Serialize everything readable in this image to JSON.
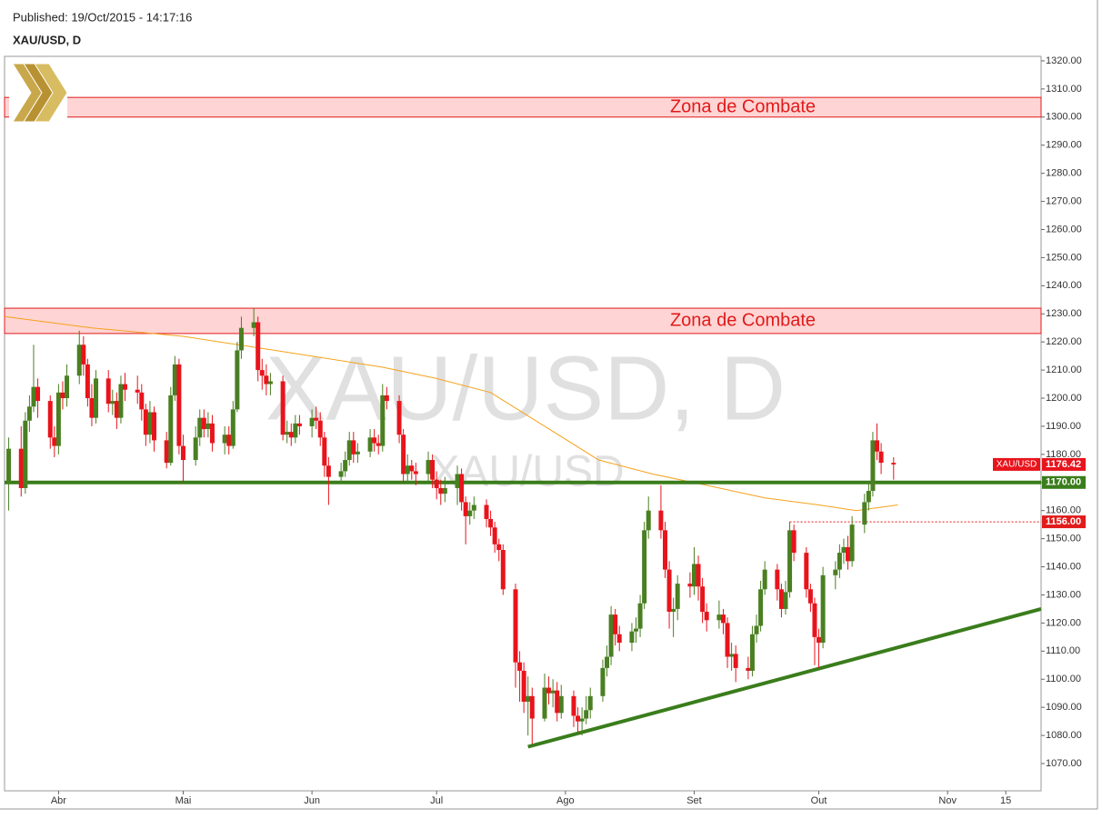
{
  "header": {
    "published": "Published: 19/Oct/2015 - 14:17:16",
    "symbol": "XAU/USD, D"
  },
  "chart_data": {
    "type": "candlestick",
    "watermark": "XAU/USD, D",
    "watermark_sub": "XAU/USD",
    "symbol_tag": "XAU/USD",
    "up_color": "#4a7f22",
    "down_color": "#e8141c",
    "xlim": [
      78,
      327.5
    ],
    "ylim": [
      1060.3,
      1321.6
    ],
    "xticks": [
      {
        "value": 91,
        "label": "Abr"
      },
      {
        "value": 121,
        "label": "Mai"
      },
      {
        "value": 152,
        "label": "Jun"
      },
      {
        "value": 182,
        "label": "Jul"
      },
      {
        "value": 213,
        "label": "Ago"
      },
      {
        "value": 244,
        "label": "Set"
      },
      {
        "value": 274,
        "label": "Out"
      },
      {
        "value": 305,
        "label": "Nov"
      },
      {
        "value": 319,
        "label": "15"
      }
    ],
    "yticks": [
      {
        "value": 1070,
        "label": "1070.00"
      },
      {
        "value": 1080,
        "label": "1080.00"
      },
      {
        "value": 1090,
        "label": "1090.00"
      },
      {
        "value": 1100,
        "label": "1100.00"
      },
      {
        "value": 1110,
        "label": "1110.00"
      },
      {
        "value": 1120,
        "label": "1120.00"
      },
      {
        "value": 1130,
        "label": "1130.00"
      },
      {
        "value": 1140,
        "label": "1140.00"
      },
      {
        "value": 1150,
        "label": "1150.00"
      },
      {
        "value": 1160,
        "label": "1160.00"
      },
      {
        "value": 1170,
        "label": "1170.00"
      },
      {
        "value": 1180,
        "label": "1180.00"
      },
      {
        "value": 1190,
        "label": "1190.00"
      },
      {
        "value": 1200,
        "label": "1200.00"
      },
      {
        "value": 1210,
        "label": "1210.00"
      },
      {
        "value": 1220,
        "label": "1220.00"
      },
      {
        "value": 1230,
        "label": "1230.00"
      },
      {
        "value": 1240,
        "label": "1240.00"
      },
      {
        "value": 1250,
        "label": "1250.00"
      },
      {
        "value": 1260,
        "label": "1260.00"
      },
      {
        "value": 1270,
        "label": "1270.00"
      },
      {
        "value": 1280,
        "label": "1280.00"
      },
      {
        "value": 1290,
        "label": "1290.00"
      },
      {
        "value": 1300,
        "label": "1300.00"
      },
      {
        "value": 1310,
        "label": "1310.00"
      },
      {
        "value": 1320,
        "label": "1320.00"
      }
    ],
    "x": [
      79,
      82,
      83,
      84,
      85,
      86,
      89,
      90,
      91,
      92,
      93,
      96,
      97,
      98,
      99,
      100,
      103,
      104,
      105,
      106,
      107,
      110,
      111,
      112,
      113,
      114,
      117,
      118,
      119,
      120,
      121,
      124,
      125,
      126,
      127,
      128,
      131,
      132,
      133,
      134,
      135,
      138,
      139,
      140,
      141,
      142,
      145,
      146,
      147,
      148,
      149,
      152,
      153,
      154,
      155,
      156,
      159,
      160,
      161,
      162,
      163,
      166,
      167,
      168,
      169,
      170,
      173,
      174,
      175,
      176,
      177,
      180,
      181,
      182,
      183,
      184,
      187,
      188,
      189,
      190,
      191,
      194,
      195,
      196,
      197,
      198,
      201,
      202,
      203,
      204,
      205,
      208,
      209,
      210,
      211,
      212,
      215,
      216,
      217,
      218,
      219,
      222,
      223,
      224,
      225,
      226,
      229,
      230,
      231,
      232,
      233,
      236,
      237,
      238,
      239,
      240,
      243,
      244,
      245,
      246,
      247,
      250,
      251,
      252,
      253,
      254,
      257,
      258,
      259,
      260,
      261,
      264,
      265,
      266,
      267,
      268,
      271,
      272,
      273,
      274,
      275,
      278,
      279,
      280,
      281,
      282,
      285,
      286,
      287,
      288,
      289,
      292
    ],
    "ohlc": [
      [
        1170,
        1186,
        1160,
        1182
      ],
      [
        1182,
        1190,
        1165,
        1168
      ],
      [
        1168,
        1195,
        1166,
        1192
      ],
      [
        1192,
        1201,
        1188,
        1197
      ],
      [
        1197,
        1219,
        1195,
        1204
      ],
      [
        1204,
        1207,
        1193,
        1199
      ],
      [
        1199,
        1201,
        1182,
        1186
      ],
      [
        1186,
        1190,
        1179,
        1183
      ],
      [
        1183,
        1205,
        1180,
        1202
      ],
      [
        1202,
        1206,
        1196,
        1200
      ],
      [
        1200,
        1212,
        1197,
        1208
      ],
      [
        1208,
        1224,
        1205,
        1219
      ],
      [
        1219,
        1222,
        1208,
        1212
      ],
      [
        1212,
        1214,
        1197,
        1200
      ],
      [
        1200,
        1205,
        1190,
        1193
      ],
      [
        1193,
        1210,
        1191,
        1207
      ],
      [
        1207,
        1210,
        1195,
        1198
      ],
      [
        1198,
        1203,
        1194,
        1199
      ],
      [
        1199,
        1202,
        1189,
        1193
      ],
      [
        1193,
        1208,
        1191,
        1205
      ],
      [
        1205,
        1209,
        1199,
        1203
      ],
      [
        1203,
        1208,
        1198,
        1202
      ],
      [
        1202,
        1205,
        1192,
        1196
      ],
      [
        1196,
        1198,
        1183,
        1187
      ],
      [
        1187,
        1199,
        1184,
        1195
      ],
      [
        1195,
        1197,
        1181,
        1185
      ],
      [
        1185,
        1188,
        1175,
        1177
      ],
      [
        1177,
        1204,
        1176,
        1201
      ],
      [
        1201,
        1215,
        1199,
        1212
      ],
      [
        1212,
        1214,
        1180,
        1183
      ],
      [
        1183,
        1187,
        1170,
        1178
      ],
      [
        1178,
        1190,
        1176,
        1186
      ],
      [
        1186,
        1196,
        1183,
        1193
      ],
      [
        1193,
        1196,
        1186,
        1189
      ],
      [
        1189,
        1195,
        1186,
        1191
      ],
      [
        1191,
        1194,
        1181,
        1184
      ],
      [
        1184,
        1190,
        1180,
        1187
      ],
      [
        1187,
        1190,
        1180,
        1183
      ],
      [
        1183,
        1199,
        1182,
        1196
      ],
      [
        1196,
        1220,
        1195,
        1217
      ],
      [
        1217,
        1229,
        1214,
        1225
      ],
      [
        1225,
        1232,
        1222,
        1227
      ],
      [
        1227,
        1229,
        1206,
        1210
      ],
      [
        1210,
        1214,
        1203,
        1208
      ],
      [
        1208,
        1212,
        1201,
        1205
      ],
      [
        1205,
        1209,
        1201,
        1206
      ],
      [
        1206,
        1208,
        1185,
        1187
      ],
      [
        1187,
        1192,
        1184,
        1188
      ],
      [
        1188,
        1191,
        1183,
        1186
      ],
      [
        1186,
        1194,
        1184,
        1191
      ],
      [
        1191,
        1194,
        1187,
        1190
      ],
      [
        1190,
        1196,
        1186,
        1193
      ],
      [
        1193,
        1197,
        1189,
        1192
      ],
      [
        1192,
        1195,
        1183,
        1186
      ],
      [
        1186,
        1188,
        1172,
        1176
      ],
      [
        1176,
        1179,
        1162,
        1172
      ],
      [
        1172,
        1177,
        1170,
        1174
      ],
      [
        1174,
        1181,
        1172,
        1178
      ],
      [
        1178,
        1188,
        1176,
        1185
      ],
      [
        1185,
        1188,
        1177,
        1180
      ],
      [
        1180,
        1184,
        1177,
        1181
      ],
      [
        1181,
        1189,
        1179,
        1186
      ],
      [
        1186,
        1189,
        1181,
        1184
      ],
      [
        1184,
        1187,
        1180,
        1183
      ],
      [
        1183,
        1205,
        1181,
        1201
      ],
      [
        1201,
        1204,
        1196,
        1199
      ],
      [
        1199,
        1201,
        1184,
        1187
      ],
      [
        1187,
        1189,
        1170,
        1173
      ],
      [
        1173,
        1180,
        1170,
        1176
      ],
      [
        1176,
        1178,
        1171,
        1174
      ],
      [
        1174,
        1177,
        1169,
        1173
      ],
      [
        1173,
        1181,
        1170,
        1178
      ],
      [
        1178,
        1180,
        1168,
        1171
      ],
      [
        1171,
        1174,
        1164,
        1168
      ],
      [
        1168,
        1171,
        1162,
        1166
      ],
      [
        1166,
        1172,
        1163,
        1168
      ],
      [
        1168,
        1176,
        1162,
        1173
      ],
      [
        1173,
        1175,
        1160,
        1163
      ],
      [
        1163,
        1165,
        1148,
        1158
      ],
      [
        1158,
        1163,
        1155,
        1160
      ],
      [
        1160,
        1165,
        1157,
        1162
      ],
      [
        1162,
        1164,
        1154,
        1157
      ],
      [
        1157,
        1160,
        1151,
        1154
      ],
      [
        1154,
        1156,
        1145,
        1148
      ],
      [
        1148,
        1150,
        1142,
        1146
      ],
      [
        1146,
        1148,
        1130,
        1132
      ],
      [
        1132,
        1134,
        1097,
        1106
      ],
      [
        1106,
        1110,
        1092,
        1103
      ],
      [
        1103,
        1106,
        1088,
        1092
      ],
      [
        1092,
        1101,
        1080,
        1094
      ],
      [
        1094,
        1097,
        1077,
        1086
      ],
      [
        1086,
        1102,
        1085,
        1097
      ],
      [
        1097,
        1101,
        1091,
        1095
      ],
      [
        1095,
        1100,
        1090,
        1096
      ],
      [
        1096,
        1099,
        1085,
        1088
      ],
      [
        1088,
        1098,
        1086,
        1094
      ],
      [
        1094,
        1096,
        1083,
        1087
      ],
      [
        1087,
        1090,
        1081,
        1085
      ],
      [
        1085,
        1090,
        1080,
        1086
      ],
      [
        1086,
        1094,
        1084,
        1089
      ],
      [
        1089,
        1097,
        1086,
        1094
      ],
      [
        1094,
        1107,
        1092,
        1104
      ],
      [
        1104,
        1112,
        1101,
        1108
      ],
      [
        1108,
        1126,
        1105,
        1123
      ],
      [
        1123,
        1125,
        1112,
        1116
      ],
      [
        1116,
        1119,
        1110,
        1113
      ],
      [
        1113,
        1120,
        1110,
        1117
      ],
      [
        1117,
        1122,
        1113,
        1118
      ],
      [
        1118,
        1130,
        1115,
        1127
      ],
      [
        1127,
        1156,
        1125,
        1153
      ],
      [
        1153,
        1165,
        1150,
        1160
      ],
      [
        1160,
        1169,
        1150,
        1153
      ],
      [
        1153,
        1156,
        1136,
        1139
      ],
      [
        1139,
        1142,
        1118,
        1124
      ],
      [
        1124,
        1129,
        1115,
        1125
      ],
      [
        1125,
        1137,
        1121,
        1134
      ],
      [
        1134,
        1138,
        1129,
        1133
      ],
      [
        1133,
        1147,
        1130,
        1141
      ],
      [
        1141,
        1144,
        1128,
        1133
      ],
      [
        1133,
        1136,
        1120,
        1124
      ],
      [
        1124,
        1127,
        1117,
        1121
      ],
      [
        1121,
        1128,
        1118,
        1123
      ],
      [
        1123,
        1125,
        1116,
        1120
      ],
      [
        1120,
        1122,
        1104,
        1108
      ],
      [
        1108,
        1113,
        1103,
        1109
      ],
      [
        1109,
        1112,
        1099,
        1104
      ],
      [
        1104,
        1108,
        1100,
        1103
      ],
      [
        1103,
        1119,
        1101,
        1116
      ],
      [
        1116,
        1123,
        1113,
        1119
      ],
      [
        1119,
        1135,
        1117,
        1132
      ],
      [
        1132,
        1142,
        1130,
        1139
      ],
      [
        1139,
        1141,
        1128,
        1132
      ],
      [
        1132,
        1134,
        1122,
        1125
      ],
      [
        1125,
        1135,
        1123,
        1131
      ],
      [
        1131,
        1156,
        1129,
        1153
      ],
      [
        1153,
        1155,
        1142,
        1145
      ],
      [
        1145,
        1147,
        1129,
        1132
      ],
      [
        1132,
        1134,
        1124,
        1127
      ],
      [
        1127,
        1129,
        1105,
        1115
      ],
      [
        1115,
        1118,
        1104,
        1113
      ],
      [
        1113,
        1140,
        1111,
        1137
      ],
      [
        1137,
        1142,
        1132,
        1139
      ],
      [
        1139,
        1148,
        1136,
        1145
      ],
      [
        1145,
        1150,
        1141,
        1147
      ],
      [
        1147,
        1151,
        1139,
        1142
      ],
      [
        1142,
        1158,
        1140,
        1155
      ],
      [
        1155,
        1166,
        1152,
        1163
      ],
      [
        1163,
        1170,
        1160,
        1167
      ],
      [
        1167,
        1188,
        1165,
        1185
      ],
      [
        1185,
        1191,
        1178,
        1181
      ],
      [
        1181,
        1184,
        1173,
        1177
      ],
      [
        1177,
        1179,
        1171,
        1176.42
      ]
    ],
    "ma": {
      "color": "#f5a21b",
      "x": [
        78,
        99,
        121,
        143,
        169,
        182,
        195,
        208,
        221,
        234,
        247,
        261,
        274,
        283,
        293
      ],
      "values": [
        1229,
        1225,
        1222,
        1217,
        1211,
        1207,
        1202,
        1190,
        1178,
        1173,
        1169,
        1164.5,
        1162,
        1160,
        1162
      ]
    },
    "zones": [
      {
        "label": "Zona de Combate",
        "range": [
          1300,
          1307
        ]
      },
      {
        "label": "Zona de Combate",
        "range": [
          1223,
          1232
        ]
      }
    ],
    "levels": [
      {
        "value": 1170,
        "label": "1170.00",
        "color": "#3a7d1c"
      },
      {
        "value": 1156,
        "label": "1156.00",
        "color": "#e21b1b",
        "from": 267
      }
    ],
    "trendline": {
      "color": "#3a7d1c",
      "x": [
        204,
        327.5
      ],
      "values": [
        1076,
        1125
      ]
    }
  }
}
